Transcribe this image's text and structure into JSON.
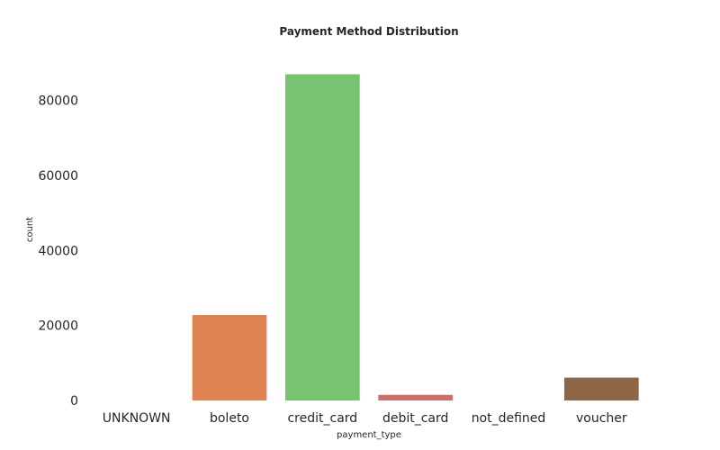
{
  "chart_data": {
    "type": "bar",
    "title": "Payment Method Distribution",
    "xlabel": "payment_type",
    "ylabel": "count",
    "categories": [
      "UNKNOWN",
      "boleto",
      "credit_card",
      "debit_card",
      "not_defined",
      "voucher"
    ],
    "values": [
      0,
      22800,
      87000,
      1500,
      0,
      6100
    ],
    "colors": [
      "#4c72b0",
      "#dd8452",
      "#77c370",
      "#cd6f6a",
      "#9371b6",
      "#8c6646"
    ],
    "ylim": [
      0,
      90000
    ],
    "yticks": [
      0,
      20000,
      40000,
      60000,
      80000
    ],
    "grid": false,
    "legend": "none"
  }
}
